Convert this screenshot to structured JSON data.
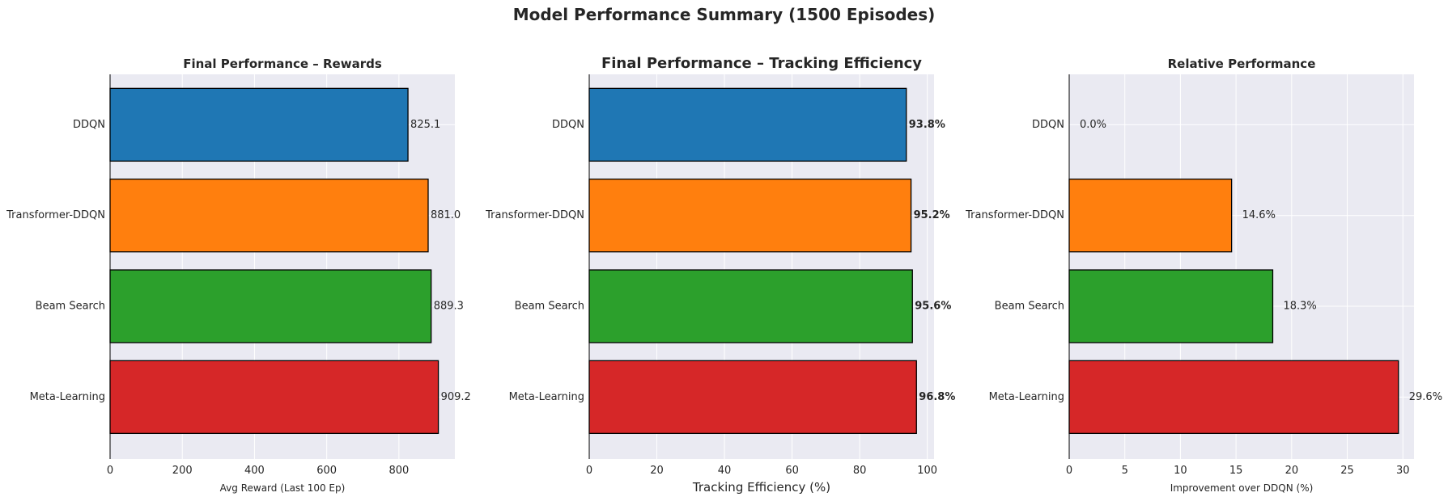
{
  "figure_title": "Model Performance Summary (1500 Episodes)",
  "chart_data": [
    {
      "type": "bar",
      "orientation": "horizontal",
      "title": "Final Performance – Rewards",
      "xlabel": "Avg Reward (Last 100 Ep)",
      "ylabel": "",
      "categories": [
        "DDQN",
        "Transformer-DDQN",
        "Beam Search",
        "Meta-Learning"
      ],
      "values": [
        825.1,
        881.0,
        889.3,
        909.2
      ],
      "value_labels": [
        "825.1",
        "881.0",
        "889.3",
        "909.2"
      ],
      "xlim": [
        0,
        955
      ],
      "xticks": [
        0,
        200,
        400,
        600,
        800
      ],
      "xtick_labels": [
        "0",
        "200",
        "400",
        "600",
        "800"
      ],
      "label_bold": false,
      "grid": true
    },
    {
      "type": "bar",
      "orientation": "horizontal",
      "title": "Final Performance – Tracking Efficiency",
      "xlabel": "Tracking Efficiency (%)",
      "ylabel": "",
      "categories": [
        "DDQN",
        "Transformer-DDQN",
        "Beam Search",
        "Meta-Learning"
      ],
      "values": [
        93.8,
        95.2,
        95.6,
        96.8
      ],
      "value_labels": [
        "93.8%",
        "95.2%",
        "95.6%",
        "96.8%"
      ],
      "xlim": [
        0,
        102
      ],
      "xticks": [
        0,
        20,
        40,
        60,
        80,
        100
      ],
      "xtick_labels": [
        "0",
        "20",
        "40",
        "60",
        "80",
        "100"
      ],
      "label_bold": true,
      "grid": true
    },
    {
      "type": "bar",
      "orientation": "horizontal",
      "title": "Relative Performance",
      "xlabel": "Improvement over DDQN (%)",
      "ylabel": "",
      "categories": [
        "DDQN",
        "Transformer-DDQN",
        "Beam Search",
        "Meta-Learning"
      ],
      "values": [
        0.0,
        14.6,
        18.3,
        29.6
      ],
      "value_labels": [
        "0.0%",
        "14.6%",
        "18.3%",
        "29.6%"
      ],
      "xlim": [
        0,
        31
      ],
      "xticks": [
        0,
        5,
        10,
        15,
        20,
        25,
        30
      ],
      "xtick_labels": [
        "0",
        "5",
        "10",
        "15",
        "20",
        "25",
        "30"
      ],
      "label_bold": false,
      "grid": true
    }
  ],
  "colors": {
    "series": [
      "#1f77b4",
      "#ff7f0e",
      "#2ca02c",
      "#d62728"
    ],
    "axes_bg": "#eaeaf2",
    "grid": "#ffffff",
    "text": "#262626",
    "bar_edge": "#000000"
  }
}
